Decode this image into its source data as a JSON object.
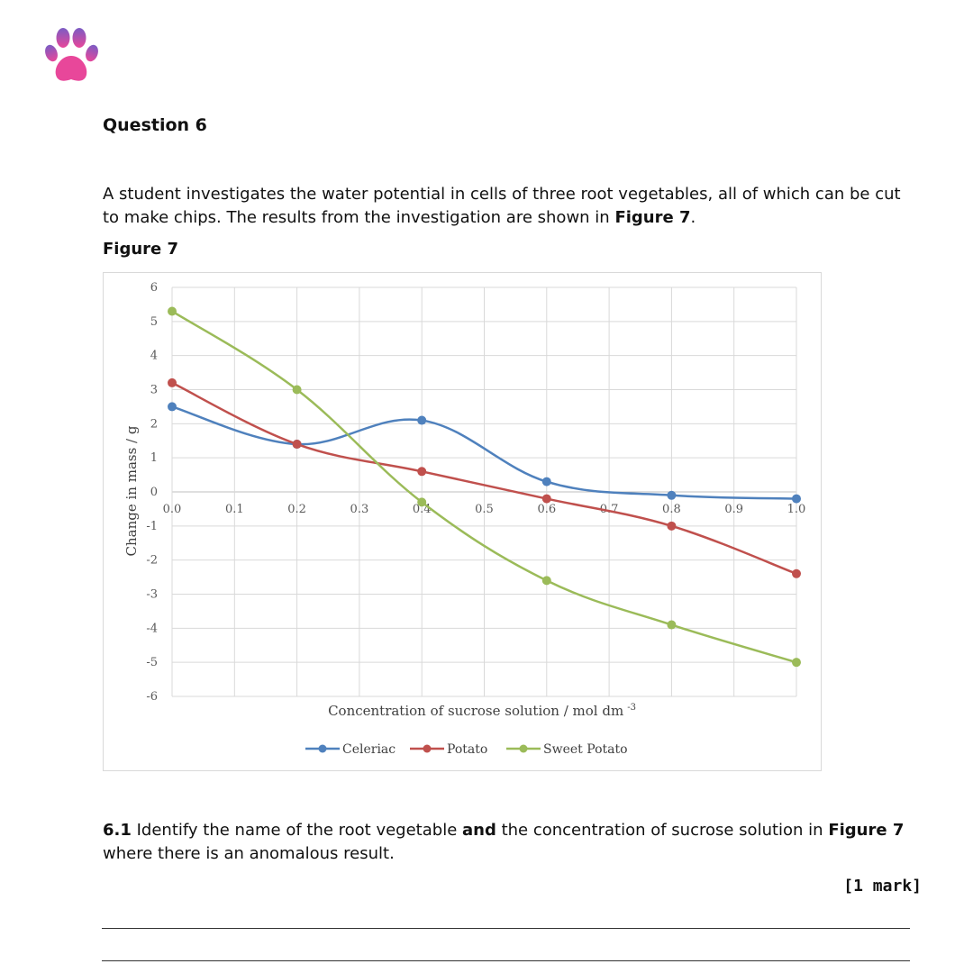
{
  "question": {
    "title": "Question 6",
    "intro_part1": "A student investigates the water potential in cells of three root vegetables, all of which can be cut to make chips. The results from the investigation are shown in ",
    "intro_bold": "Figure 7",
    "intro_part2": ".",
    "figure_label": "Figure 7"
  },
  "subquestion": {
    "number": "6.1",
    "text_part1": " Identify the name of the root vegetable ",
    "text_bold": "and",
    "text_part2": " the concentration of sucrose solution in ",
    "text_bold2": "Figure 7",
    "text_part3": " where there is an anomalous result.",
    "marks": "[1 mark]"
  },
  "colors": {
    "celeriac": "#4f81bd",
    "potato": "#c0504d",
    "sweet_potato": "#9bbb59",
    "logo_top": "#7b5cc4",
    "logo_bottom": "#e8479a"
  },
  "chart_data": {
    "type": "line",
    "title": "",
    "xlabel": "Concentration of sucrose solution / mol dm",
    "xlabel_sup": "-3",
    "ylabel": "Change in mass / g",
    "xlim": [
      0,
      1
    ],
    "ylim": [
      -6,
      6
    ],
    "x_ticks": [
      "0.0",
      "0.1",
      "0.2",
      "0.3",
      "0.4",
      "0.5",
      "0.6",
      "0.7",
      "0.8",
      "0.9",
      "1.0"
    ],
    "y_ticks": [
      "6",
      "5",
      "4",
      "3",
      "2",
      "1",
      "0",
      "-1",
      "-2",
      "-3",
      "-4",
      "-5",
      "-6"
    ],
    "grid": true,
    "legend_position": "bottom",
    "series": [
      {
        "name": "Celeriac",
        "x": [
          0.0,
          0.2,
          0.4,
          0.6,
          0.8,
          1.0
        ],
        "values": [
          2.5,
          1.4,
          2.1,
          0.3,
          -0.1,
          -0.2
        ]
      },
      {
        "name": "Potato",
        "x": [
          0.0,
          0.2,
          0.4,
          0.6,
          0.8,
          1.0
        ],
        "values": [
          3.2,
          1.4,
          0.6,
          -0.2,
          -1.0,
          -2.4
        ]
      },
      {
        "name": "Sweet Potato",
        "x": [
          0.0,
          0.2,
          0.4,
          0.6,
          0.8,
          1.0
        ],
        "values": [
          5.3,
          3.0,
          -0.3,
          -2.6,
          -3.9,
          -5.0
        ]
      }
    ]
  }
}
